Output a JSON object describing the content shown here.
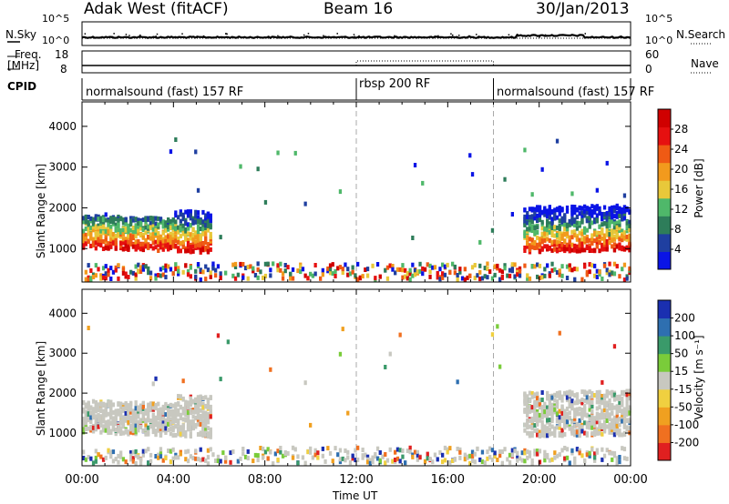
{
  "header": {
    "station": "Adak West (fitACF)",
    "beam": "Beam 16",
    "date": "30/Jan/2013"
  },
  "summary_panels": {
    "nsky_label": "N.Sky",
    "nsearch_label": "N.Search",
    "noise_ticks_left": [
      "10^5",
      "10^0"
    ],
    "noise_ticks_right": [
      "10^5",
      "10^0"
    ],
    "freq_label_line1": "Freq.",
    "freq_label_line2": "[MHz]",
    "freq_ticks": [
      "18",
      "8"
    ],
    "nave_label": "Nave",
    "nave_ticks": [
      "60",
      "0"
    ],
    "cpid_label": "CPID"
  },
  "cpid_segments": [
    {
      "name": "normalsound (fast) 157 RF",
      "start_h": 0,
      "end_h": 12
    },
    {
      "name": "rbsp 200 RF",
      "start_h": 12,
      "end_h": 18
    },
    {
      "name": "normalsound (fast) 157 RF",
      "start_h": 18,
      "end_h": 24
    }
  ],
  "colors": {
    "power_scale": [
      "#0a14e6",
      "#1f3fa0",
      "#2e7d5a",
      "#4fb86a",
      "#e8c83a",
      "#f29a1d",
      "#ef5a14",
      "#e61010",
      "#d00000"
    ],
    "velocity_scale": [
      "#1a2fb0",
      "#2e6fb0",
      "#3a9a6a",
      "#7acc3a",
      "#c8c8c0",
      "#f0d040",
      "#f0a020",
      "#f07020",
      "#e02020"
    ]
  },
  "chart_data": [
    {
      "type": "heatmap",
      "name": "power",
      "ylabel": "Slant Range [km]",
      "xlabel": "",
      "xlim_hours": [
        0,
        24
      ],
      "ylim_km": [
        180,
        4600
      ],
      "yticks": [
        "1000",
        "2000",
        "3000",
        "4000"
      ],
      "colorbar_label": "Power [dB]",
      "colorbar_ticks": [
        "4",
        "8",
        "12",
        "16",
        "20",
        "24",
        "28"
      ],
      "colorbar_range": [
        0,
        30
      ],
      "dashed_vlines_h": [
        12,
        18
      ]
    },
    {
      "type": "heatmap",
      "name": "velocity",
      "ylabel": "Slant Range [km]",
      "xlabel": "Time UT",
      "xlim_hours": [
        0,
        24
      ],
      "ylim_km": [
        180,
        4600
      ],
      "yticks": [
        "1000",
        "2000",
        "3000",
        "4000"
      ],
      "xticks": [
        "00:00",
        "04:00",
        "08:00",
        "12:00",
        "16:00",
        "20:00",
        "00:00"
      ],
      "colorbar_label": "Velocity [m s⁻¹]",
      "colorbar_ticks": [
        "200",
        "100",
        "50",
        "15",
        "-15",
        "-50",
        "-100",
        "-200"
      ],
      "dashed_vlines_h": [
        12,
        18
      ]
    }
  ]
}
